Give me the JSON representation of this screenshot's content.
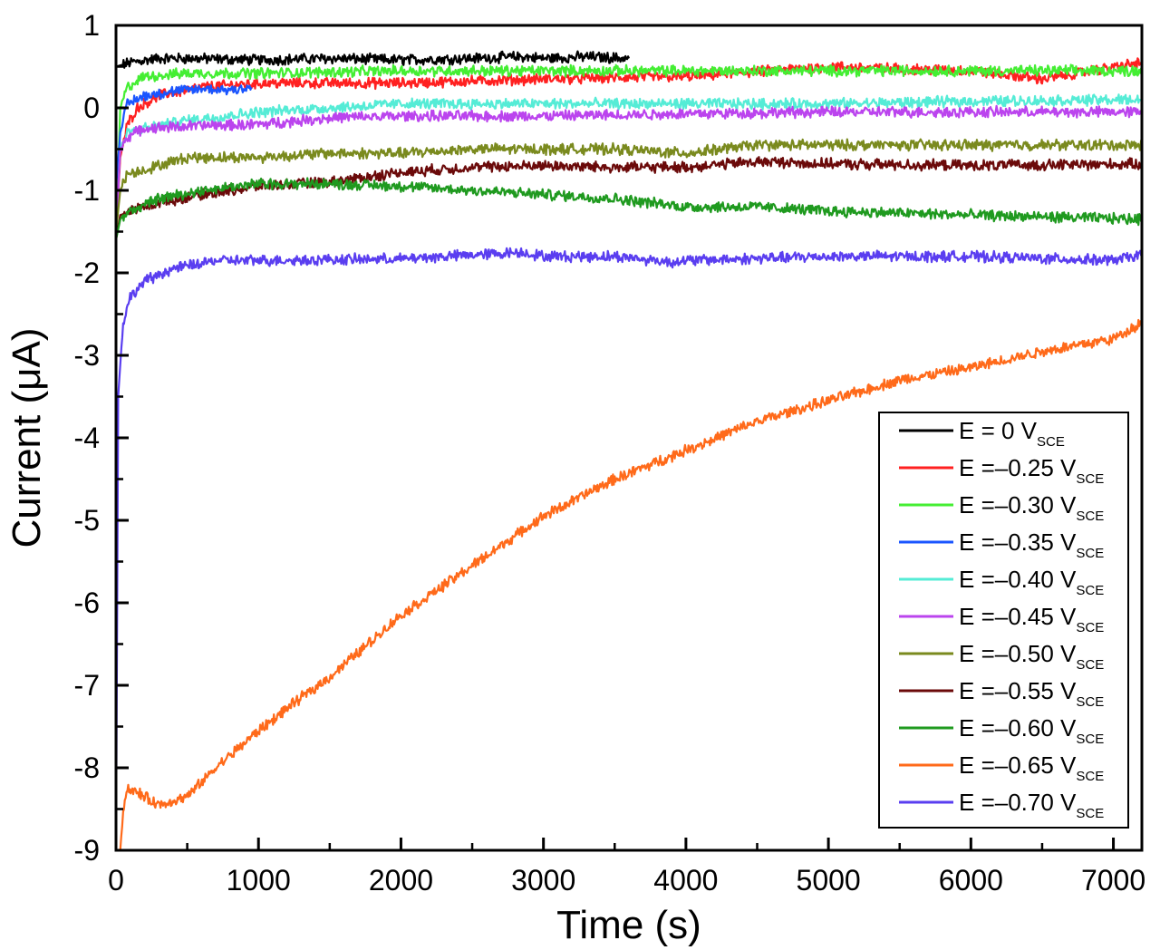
{
  "chart_data": {
    "type": "line",
    "xlabel": "Time (s)",
    "ylabel": "Current (μA)",
    "xlim": [
      0,
      7200
    ],
    "ylim": [
      -9,
      1
    ],
    "xticks": [
      0,
      1000,
      2000,
      3000,
      4000,
      5000,
      6000,
      7000
    ],
    "xtick_labels": [
      "0",
      "1000",
      "2000",
      "3000",
      "4000",
      "5000",
      "6000",
      "7000"
    ],
    "yticks": [
      1,
      0,
      -1,
      -2,
      -3,
      -4,
      -5,
      -6,
      -7,
      -8,
      -9
    ],
    "ytick_labels": [
      "1",
      "0",
      "-1",
      "-2",
      "-3",
      "-4",
      "-5",
      "-6",
      "-7",
      "-8",
      "-9"
    ],
    "grid": false,
    "legend_position": "bottom-right",
    "series": [
      {
        "name": "E = 0 V",
        "sub": "SCE",
        "color": "#000000",
        "points": [
          [
            0,
            0.5
          ],
          [
            100,
            0.55
          ],
          [
            300,
            0.6
          ],
          [
            500,
            0.6
          ],
          [
            1000,
            0.58
          ],
          [
            1500,
            0.6
          ],
          [
            2000,
            0.58
          ],
          [
            2500,
            0.6
          ],
          [
            2850,
            0.62
          ],
          [
            3000,
            0.6
          ],
          [
            3300,
            0.62
          ],
          [
            3600,
            0.6
          ]
        ]
      },
      {
        "name": "E =–0.25 V",
        "sub": "SCE",
        "color": "#ff2020",
        "points": [
          [
            0,
            -1.5
          ],
          [
            30,
            -0.6
          ],
          [
            80,
            -0.2
          ],
          [
            150,
            0.0
          ],
          [
            300,
            0.15
          ],
          [
            600,
            0.25
          ],
          [
            1000,
            0.3
          ],
          [
            2000,
            0.3
          ],
          [
            3000,
            0.35
          ],
          [
            4000,
            0.38
          ],
          [
            5000,
            0.5
          ],
          [
            6000,
            0.45
          ],
          [
            6500,
            0.35
          ],
          [
            7200,
            0.55
          ]
        ]
      },
      {
        "name": "E =–0.30 V",
        "sub": "SCE",
        "color": "#44ee33",
        "points": [
          [
            0,
            -1.5
          ],
          [
            30,
            0.0
          ],
          [
            80,
            0.25
          ],
          [
            200,
            0.38
          ],
          [
            500,
            0.42
          ],
          [
            1000,
            0.42
          ],
          [
            2000,
            0.45
          ],
          [
            3000,
            0.45
          ],
          [
            4000,
            0.45
          ],
          [
            5000,
            0.45
          ],
          [
            6000,
            0.45
          ],
          [
            7200,
            0.45
          ]
        ]
      },
      {
        "name": "E =–0.35 V",
        "sub": "SCE",
        "color": "#1a55ff",
        "points": [
          [
            0,
            -1.0
          ],
          [
            30,
            -0.3
          ],
          [
            80,
            0.05
          ],
          [
            200,
            0.15
          ],
          [
            400,
            0.2
          ],
          [
            600,
            0.23
          ],
          [
            800,
            0.22
          ],
          [
            950,
            0.25
          ]
        ]
      },
      {
        "name": "E =–0.40 V",
        "sub": "SCE",
        "color": "#55ecd6",
        "points": [
          [
            0,
            -1.5
          ],
          [
            30,
            -0.5
          ],
          [
            80,
            -0.3
          ],
          [
            200,
            -0.25
          ],
          [
            500,
            -0.15
          ],
          [
            1000,
            -0.05
          ],
          [
            1500,
            0.0
          ],
          [
            2000,
            0.05
          ],
          [
            3000,
            0.05
          ],
          [
            4000,
            0.05
          ],
          [
            5000,
            0.05
          ],
          [
            6000,
            0.08
          ],
          [
            7200,
            0.1
          ]
        ]
      },
      {
        "name": "E =–0.45 V",
        "sub": "SCE",
        "color": "#bb44ee",
        "points": [
          [
            0,
            -1.5
          ],
          [
            30,
            -0.5
          ],
          [
            80,
            -0.35
          ],
          [
            200,
            -0.25
          ],
          [
            500,
            -0.22
          ],
          [
            1000,
            -0.2
          ],
          [
            1500,
            -0.12
          ],
          [
            2000,
            -0.1
          ],
          [
            3000,
            -0.1
          ],
          [
            4000,
            -0.07
          ],
          [
            5000,
            -0.05
          ],
          [
            6000,
            -0.05
          ],
          [
            7200,
            -0.05
          ]
        ]
      },
      {
        "name": "E =–0.50 V",
        "sub": "SCE",
        "color": "#7a8a1e",
        "points": [
          [
            0,
            -1.5
          ],
          [
            30,
            -1.0
          ],
          [
            80,
            -0.8
          ],
          [
            200,
            -0.75
          ],
          [
            500,
            -0.6
          ],
          [
            1000,
            -0.6
          ],
          [
            1500,
            -0.55
          ],
          [
            2000,
            -0.55
          ],
          [
            2500,
            -0.5
          ],
          [
            3000,
            -0.5
          ],
          [
            3500,
            -0.5
          ],
          [
            4000,
            -0.55
          ],
          [
            4500,
            -0.45
          ],
          [
            5000,
            -0.45
          ],
          [
            6000,
            -0.45
          ],
          [
            7200,
            -0.45
          ]
        ]
      },
      {
        "name": "E =–0.55 V",
        "sub": "SCE",
        "color": "#6b0a0a",
        "points": [
          [
            0,
            -1.6
          ],
          [
            30,
            -1.3
          ],
          [
            100,
            -1.25
          ],
          [
            300,
            -1.15
          ],
          [
            600,
            -1.05
          ],
          [
            1000,
            -0.95
          ],
          [
            1500,
            -0.9
          ],
          [
            2000,
            -0.78
          ],
          [
            2500,
            -0.72
          ],
          [
            3000,
            -0.7
          ],
          [
            3500,
            -0.72
          ],
          [
            4000,
            -0.72
          ],
          [
            4500,
            -0.65
          ],
          [
            5000,
            -0.68
          ],
          [
            6000,
            -0.7
          ],
          [
            7200,
            -0.68
          ]
        ]
      },
      {
        "name": "E =–0.60 V",
        "sub": "SCE",
        "color": "#1f9a1f",
        "points": [
          [
            0,
            -1.6
          ],
          [
            30,
            -1.35
          ],
          [
            100,
            -1.25
          ],
          [
            300,
            -1.1
          ],
          [
            600,
            -1.0
          ],
          [
            1000,
            -0.92
          ],
          [
            1500,
            -0.92
          ],
          [
            2000,
            -0.95
          ],
          [
            2500,
            -1.0
          ],
          [
            3000,
            -1.05
          ],
          [
            3500,
            -1.1
          ],
          [
            4000,
            -1.2
          ],
          [
            4500,
            -1.2
          ],
          [
            5000,
            -1.25
          ],
          [
            6000,
            -1.3
          ],
          [
            7200,
            -1.35
          ]
        ]
      },
      {
        "name": "E =–0.65 V",
        "sub": "SCE",
        "color": "#ff6a1a",
        "points": [
          [
            30,
            -9.0
          ],
          [
            50,
            -8.5
          ],
          [
            80,
            -8.25
          ],
          [
            150,
            -8.3
          ],
          [
            300,
            -8.45
          ],
          [
            500,
            -8.35
          ],
          [
            700,
            -8.0
          ],
          [
            1000,
            -7.55
          ],
          [
            1300,
            -7.15
          ],
          [
            1500,
            -6.9
          ],
          [
            2000,
            -6.15
          ],
          [
            2500,
            -5.55
          ],
          [
            3000,
            -4.95
          ],
          [
            3500,
            -4.5
          ],
          [
            4000,
            -4.15
          ],
          [
            4500,
            -3.8
          ],
          [
            5000,
            -3.55
          ],
          [
            5500,
            -3.3
          ],
          [
            6000,
            -3.15
          ],
          [
            6500,
            -2.95
          ],
          [
            7000,
            -2.8
          ],
          [
            7200,
            -2.6
          ]
        ]
      },
      {
        "name": "E =–0.70 V",
        "sub": "SCE",
        "color": "#5a3ef0",
        "points": [
          [
            0,
            -9.0
          ],
          [
            15,
            -3.5
          ],
          [
            50,
            -2.6
          ],
          [
            100,
            -2.3
          ],
          [
            200,
            -2.1
          ],
          [
            400,
            -1.95
          ],
          [
            700,
            -1.85
          ],
          [
            1000,
            -1.85
          ],
          [
            2000,
            -1.83
          ],
          [
            2850,
            -1.75
          ],
          [
            3000,
            -1.8
          ],
          [
            3500,
            -1.8
          ],
          [
            3900,
            -1.87
          ],
          [
            4000,
            -1.85
          ],
          [
            5000,
            -1.8
          ],
          [
            6000,
            -1.8
          ],
          [
            7000,
            -1.85
          ],
          [
            7200,
            -1.78
          ]
        ]
      }
    ]
  }
}
